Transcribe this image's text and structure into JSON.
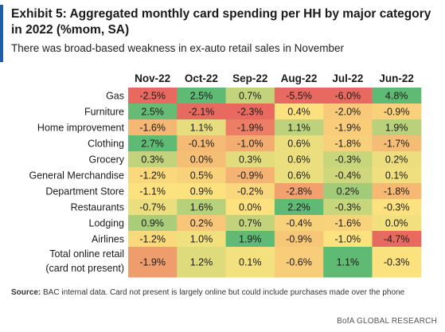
{
  "header": {
    "title": "Exhibit 5: Aggregated monthly card spending per HH by major category in 2022 (%mom, SA)",
    "subtitle": "There was broad-based weakness in ex-auto retail sales in November"
  },
  "chart_data": {
    "type": "heatmap",
    "columns": [
      "Nov-22",
      "Oct-22",
      "Sep-22",
      "Aug-22",
      "Jul-22",
      "Jun-22"
    ],
    "rows": [
      {
        "label": "Gas",
        "values": [
          -2.5,
          2.5,
          0.7,
          -5.5,
          -6.0,
          4.8
        ],
        "text": [
          "-2.5%",
          "2.5%",
          "0.7%",
          "-5.5%",
          "-6.0%",
          "4.8%"
        ]
      },
      {
        "label": "Furniture",
        "values": [
          2.5,
          -2.1,
          -2.3,
          0.4,
          -2.0,
          -0.9
        ],
        "text": [
          "2.5%",
          "-2.1%",
          "-2.3%",
          "0.4%",
          "-2.0%",
          "-0.9%"
        ]
      },
      {
        "label": "Home improvement",
        "values": [
          -1.6,
          1.1,
          -1.9,
          1.1,
          -1.9,
          1.9
        ],
        "text": [
          "-1.6%",
          "1.1%",
          "-1.9%",
          "1.1%",
          "-1.9%",
          "1.9%"
        ]
      },
      {
        "label": "Clothing",
        "values": [
          2.7,
          -0.1,
          -1.0,
          0.6,
          -1.8,
          -1.7
        ],
        "text": [
          "2.7%",
          "-0.1%",
          "-1.0%",
          "0.6%",
          "-1.8%",
          "-1.7%"
        ]
      },
      {
        "label": "Grocery",
        "values": [
          0.3,
          0.0,
          0.3,
          0.6,
          -0.3,
          0.2
        ],
        "text": [
          "0.3%",
          "0.0%",
          "0.3%",
          "0.6%",
          "-0.3%",
          "0.2%"
        ]
      },
      {
        "label": "General Merchandise",
        "values": [
          -1.2,
          0.5,
          -0.9,
          0.6,
          -0.4,
          0.1
        ],
        "text": [
          "-1.2%",
          "0.5%",
          "-0.9%",
          "0.6%",
          "-0.4%",
          "0.1%"
        ]
      },
      {
        "label": "Department Store",
        "values": [
          -1.1,
          0.9,
          -0.2,
          -2.8,
          0.2,
          -1.8
        ],
        "text": [
          "-1.1%",
          "0.9%",
          "-0.2%",
          "-2.8%",
          "0.2%",
          "-1.8%"
        ]
      },
      {
        "label": "Restaurants",
        "values": [
          -0.7,
          1.6,
          0.0,
          2.2,
          -0.3,
          -0.3
        ],
        "text": [
          "-0.7%",
          "1.6%",
          "0.0%",
          "2.2%",
          "-0.3%",
          "-0.3%"
        ]
      },
      {
        "label": "Lodging",
        "values": [
          0.9,
          0.2,
          0.7,
          -0.4,
          -1.6,
          0.0
        ],
        "text": [
          "0.9%",
          "0.2%",
          "0.7%",
          "-0.4%",
          "-1.6%",
          "0.0%"
        ]
      },
      {
        "label": "Airlines",
        "values": [
          -1.2,
          1.0,
          1.9,
          -0.9,
          -1.0,
          -4.7
        ],
        "text": [
          "-1.2%",
          "1.0%",
          "1.9%",
          "-0.9%",
          "-1.0%",
          "-4.7%"
        ]
      },
      {
        "label": "Total online retail (card not present)",
        "label_lines": [
          "Total online retail",
          "(card not present)"
        ],
        "values": [
          -1.9,
          1.2,
          0.1,
          -0.6,
          1.1,
          -0.3
        ],
        "text": [
          "-1.9%",
          "1.2%",
          "0.1%",
          "-0.6%",
          "1.1%",
          "-0.3%"
        ]
      }
    ],
    "color_scale": {
      "negative": "#e8695f",
      "neutral": "#fbe27f",
      "positive": "#5fba74"
    }
  },
  "footer": {
    "source_label": "Source:",
    "source_text": " BAC internal data. Card not present is largely online but could include purchases made over the phone",
    "brand": "BofA GLOBAL RESEARCH"
  },
  "colors": {
    "accent_bar": "#1f5fa8"
  }
}
